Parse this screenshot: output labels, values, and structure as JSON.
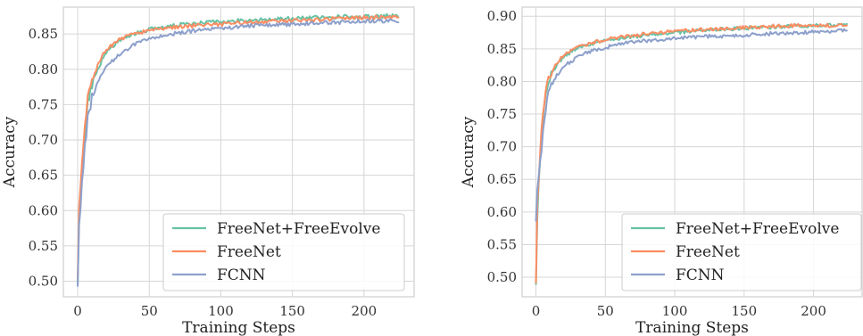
{
  "colors": {
    "freenet_freeevolve": "#66c2a5",
    "freenet": "#fc8d62",
    "fcnn": "#8da0cb"
  },
  "chart_data": [
    {
      "type": "line",
      "title": "",
      "xlabel": "Training Steps",
      "ylabel": "Accuracy",
      "xlim": [
        -10,
        235
      ],
      "ylim": [
        0.478,
        0.888
      ],
      "xticks": [
        0,
        50,
        100,
        150,
        200
      ],
      "yticks": [
        0.5,
        0.55,
        0.6,
        0.65,
        0.7,
        0.75,
        0.8,
        0.85
      ],
      "ytick_labels": [
        "0.50",
        "0.55",
        "0.60",
        "0.65",
        "0.70",
        "0.75",
        "0.80",
        "0.85"
      ],
      "grid": true,
      "legend": {
        "position": "bottom-right",
        "entries": [
          "FreeNet+FreeEvolve",
          "FreeNet",
          "FCNN"
        ]
      },
      "x_max": 224,
      "series": [
        {
          "name": "FreeNet+FreeEvolve",
          "color_key": "freenet_freeevolve",
          "anchors": [
            [
              0,
              0.5
            ],
            [
              1,
              0.6
            ],
            [
              3,
              0.65
            ],
            [
              5,
              0.7
            ],
            [
              7,
              0.75
            ],
            [
              10,
              0.78
            ],
            [
              15,
              0.805
            ],
            [
              20,
              0.825
            ],
            [
              30,
              0.842
            ],
            [
              40,
              0.851
            ],
            [
              50,
              0.856
            ],
            [
              60,
              0.86
            ],
            [
              75,
              0.864
            ],
            [
              100,
              0.868
            ],
            [
              125,
              0.87
            ],
            [
              150,
              0.872
            ],
            [
              175,
              0.874
            ],
            [
              200,
              0.875
            ],
            [
              224,
              0.876
            ]
          ]
        },
        {
          "name": "FreeNet",
          "color_key": "freenet",
          "anchors": [
            [
              0,
              0.5
            ],
            [
              1,
              0.6
            ],
            [
              3,
              0.66
            ],
            [
              5,
              0.72
            ],
            [
              7,
              0.76
            ],
            [
              10,
              0.785
            ],
            [
              15,
              0.81
            ],
            [
              20,
              0.828
            ],
            [
              30,
              0.843
            ],
            [
              40,
              0.851
            ],
            [
              50,
              0.855
            ],
            [
              60,
              0.858
            ],
            [
              75,
              0.861
            ],
            [
              100,
              0.864
            ],
            [
              125,
              0.867
            ],
            [
              150,
              0.869
            ],
            [
              175,
              0.871
            ],
            [
              200,
              0.873
            ],
            [
              224,
              0.874
            ]
          ]
        },
        {
          "name": "FCNN",
          "color_key": "fcnn",
          "anchors": [
            [
              0,
              0.497
            ],
            [
              1,
              0.58
            ],
            [
              3,
              0.64
            ],
            [
              5,
              0.69
            ],
            [
              7,
              0.73
            ],
            [
              10,
              0.76
            ],
            [
              15,
              0.785
            ],
            [
              20,
              0.803
            ],
            [
              30,
              0.823
            ],
            [
              40,
              0.835
            ],
            [
              50,
              0.843
            ],
            [
              60,
              0.848
            ],
            [
              75,
              0.853
            ],
            [
              100,
              0.858
            ],
            [
              125,
              0.862
            ],
            [
              150,
              0.864
            ],
            [
              175,
              0.866
            ],
            [
              200,
              0.868
            ],
            [
              224,
              0.869
            ]
          ]
        }
      ]
    },
    {
      "type": "line",
      "title": "",
      "xlabel": "Training Steps",
      "ylabel": "Accuracy",
      "xlim": [
        -10,
        235
      ],
      "ylim": [
        0.47,
        0.914
      ],
      "xticks": [
        0,
        50,
        100,
        150,
        200
      ],
      "yticks": [
        0.5,
        0.55,
        0.6,
        0.65,
        0.7,
        0.75,
        0.8,
        0.85,
        0.9
      ],
      "ytick_labels": [
        "0.50",
        "0.55",
        "0.60",
        "0.65",
        "0.70",
        "0.75",
        "0.80",
        "0.85",
        "0.90"
      ],
      "grid": true,
      "legend": {
        "position": "bottom-right",
        "entries": [
          "FreeNet+FreeEvolve",
          "FreeNet",
          "FCNN"
        ]
      },
      "x_max": 224,
      "series": [
        {
          "name": "FreeNet+FreeEvolve",
          "color_key": "freenet_freeevolve",
          "anchors": [
            [
              0,
              0.485
            ],
            [
              1,
              0.6
            ],
            [
              3,
              0.68
            ],
            [
              5,
              0.74
            ],
            [
              7,
              0.78
            ],
            [
              10,
              0.805
            ],
            [
              15,
              0.825
            ],
            [
              20,
              0.838
            ],
            [
              30,
              0.852
            ],
            [
              40,
              0.858
            ],
            [
              50,
              0.862
            ],
            [
              60,
              0.866
            ],
            [
              75,
              0.87
            ],
            [
              100,
              0.875
            ],
            [
              125,
              0.879
            ],
            [
              150,
              0.882
            ],
            [
              175,
              0.884
            ],
            [
              200,
              0.886
            ],
            [
              224,
              0.887
            ]
          ]
        },
        {
          "name": "FreeNet",
          "color_key": "freenet",
          "anchors": [
            [
              0,
              0.49
            ],
            [
              1,
              0.61
            ],
            [
              3,
              0.69
            ],
            [
              5,
              0.75
            ],
            [
              7,
              0.785
            ],
            [
              10,
              0.81
            ],
            [
              15,
              0.828
            ],
            [
              20,
              0.84
            ],
            [
              30,
              0.853
            ],
            [
              40,
              0.859
            ],
            [
              50,
              0.864
            ],
            [
              60,
              0.868
            ],
            [
              75,
              0.872
            ],
            [
              100,
              0.877
            ],
            [
              125,
              0.88
            ],
            [
              150,
              0.883
            ],
            [
              175,
              0.885
            ],
            [
              200,
              0.886
            ],
            [
              224,
              0.886
            ]
          ]
        },
        {
          "name": "FCNN",
          "color_key": "fcnn",
          "anchors": [
            [
              0,
              0.59
            ],
            [
              1,
              0.64
            ],
            [
              3,
              0.68
            ],
            [
              5,
              0.72
            ],
            [
              7,
              0.76
            ],
            [
              10,
              0.79
            ],
            [
              15,
              0.81
            ],
            [
              20,
              0.823
            ],
            [
              30,
              0.838
            ],
            [
              40,
              0.847
            ],
            [
              50,
              0.852
            ],
            [
              60,
              0.857
            ],
            [
              75,
              0.862
            ],
            [
              100,
              0.866
            ],
            [
              125,
              0.869
            ],
            [
              150,
              0.871
            ],
            [
              175,
              0.874
            ],
            [
              200,
              0.876
            ],
            [
              224,
              0.878
            ]
          ]
        }
      ]
    }
  ]
}
